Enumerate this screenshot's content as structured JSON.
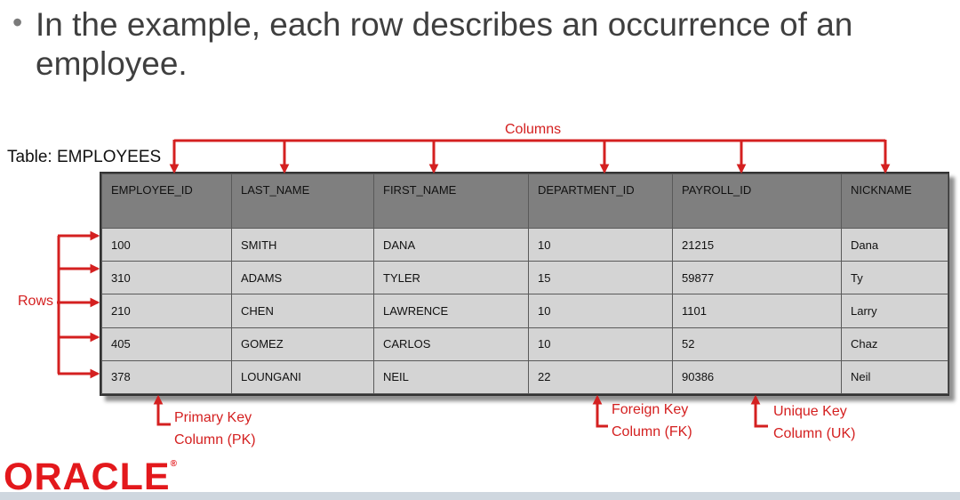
{
  "slide": {
    "bullet": "In the example, each row describes an occurrence of an employee."
  },
  "table": {
    "caption": "Table: EMPLOYEES",
    "columns": [
      "EMPLOYEE_ID",
      "LAST_NAME",
      "FIRST_NAME",
      "DEPARTMENT_ID",
      "PAYROLL_ID",
      "NICKNAME"
    ],
    "rows": [
      [
        "100",
        "SMITH",
        "DANA",
        "10",
        "21215",
        "Dana"
      ],
      [
        "310",
        "ADAMS",
        "TYLER",
        "15",
        "59877",
        "Ty"
      ],
      [
        "210",
        "CHEN",
        "LAWRENCE",
        "10",
        "1101",
        "Larry"
      ],
      [
        "405",
        "GOMEZ",
        "CARLOS",
        "10",
        "52",
        "Chaz"
      ],
      [
        "378",
        "LOUNGANI",
        "NEIL",
        "22",
        "90386",
        "Neil"
      ]
    ]
  },
  "annotations": {
    "columns": "Columns",
    "rows": "Rows",
    "primary_key": [
      "Primary Key",
      "Column (PK)"
    ],
    "foreign_key": [
      "Foreign Key",
      "Column (FK)"
    ],
    "unique_key": [
      "Unique Key",
      "Column (UK)"
    ]
  },
  "colors": {
    "annotation": "#d42020",
    "header_fill": "#7f7f7f",
    "cell_fill": "#d4d4d4",
    "logo": "#e3181c"
  },
  "logo": {
    "text": "ORACLE",
    "mark": "®"
  }
}
